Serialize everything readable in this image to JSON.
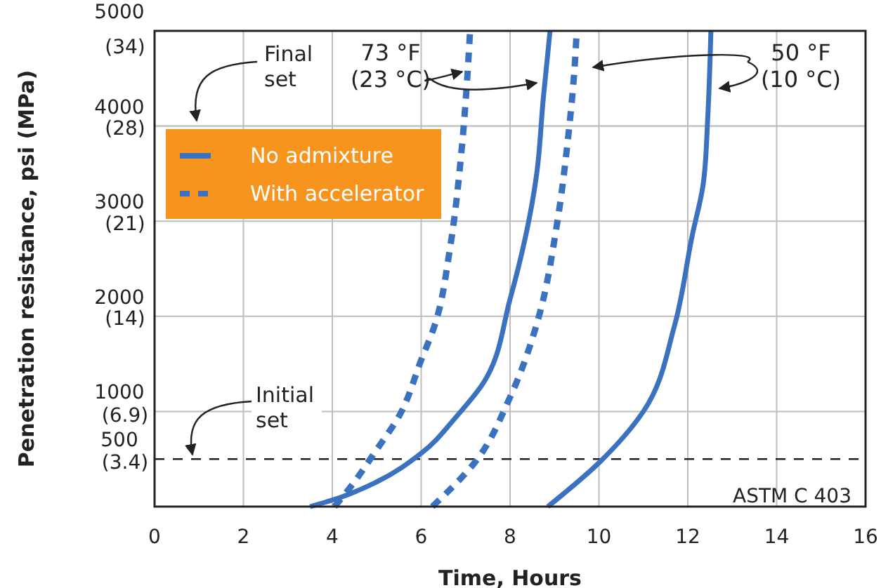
{
  "chart_data": {
    "type": "line",
    "xlabel": "Time, Hours",
    "ylabel": "Penetration resistance, psi (MPa)",
    "xlim": [
      0,
      16
    ],
    "xticks": [
      0,
      2,
      4,
      6,
      8,
      10,
      12,
      14,
      16
    ],
    "ylim": [
      0,
      5000
    ],
    "yticks": [
      500,
      1000,
      2000,
      3000,
      4000,
      5000
    ],
    "y2lim": [
      0,
      35.05
    ],
    "y2ticks": [
      {
        "value": 3.4,
        "label": "(3.4)"
      },
      {
        "value": 6.9,
        "label": "(6.9)"
      },
      {
        "value": 14,
        "label": "(14)"
      },
      {
        "value": 21,
        "label": "(21)"
      },
      {
        "value": 28,
        "label": "(28)"
      },
      {
        "value": 34,
        "label": "(34)"
      }
    ],
    "grid": true,
    "legend": "top left",
    "marker": "none",
    "series": [
      {
        "name": "No admixture",
        "color": "#3a72bf",
        "line_style": "solid",
        "x": [
          3.5,
          4.2,
          5,
          6,
          6.8,
          7.4,
          8,
          8.6,
          8.75,
          8.9
        ],
        "values": [
          0,
          100,
          260,
          560,
          950,
          1300,
          2180,
          3500,
          4300,
          5000
        ]
      },
      {
        "name": "With accelerator",
        "color": "#3a72bf",
        "line_style": "dashed",
        "x": [
          4.05,
          4.4,
          5,
          5.5,
          6,
          6.3,
          6.65,
          6.9,
          7.05,
          7.1
        ],
        "values": [
          0,
          200,
          600,
          950,
          1540,
          1900,
          2720,
          3700,
          4600,
          5000
        ]
      },
      {
        "color": "#3a72bf",
        "line_style": "solid",
        "x": [
          8.85,
          10,
          11,
          11.7,
          12.1,
          12.35,
          12.45,
          12.52
        ],
        "values": [
          0,
          460,
          1000,
          1900,
          2850,
          3400,
          4100,
          5000
        ]
      },
      {
        "color": "#3a72bf",
        "line_style": "dashed",
        "x": [
          6.25,
          7.2,
          8,
          8.65,
          9.05,
          9.3,
          9.45,
          9.5
        ],
        "values": [
          0,
          460,
          1150,
          2000,
          2950,
          3850,
          4600,
          5000
        ]
      }
    ],
    "ref_lines": [
      {
        "axis": "y",
        "value": 4000,
        "label": "Final\nset",
        "color": "#bdbdbd",
        "line_style": "solid"
      },
      {
        "axis": "y",
        "value": 500,
        "label": "Initial\nset",
        "color": "#222222",
        "line_style": "dashed"
      }
    ],
    "annotations": [
      {
        "text": "73 °F\n(23 °C)",
        "x": 7.05,
        "y": 4600
      },
      "50 °F\n(10 °C)",
      "ASTM C 403"
    ]
  }
}
